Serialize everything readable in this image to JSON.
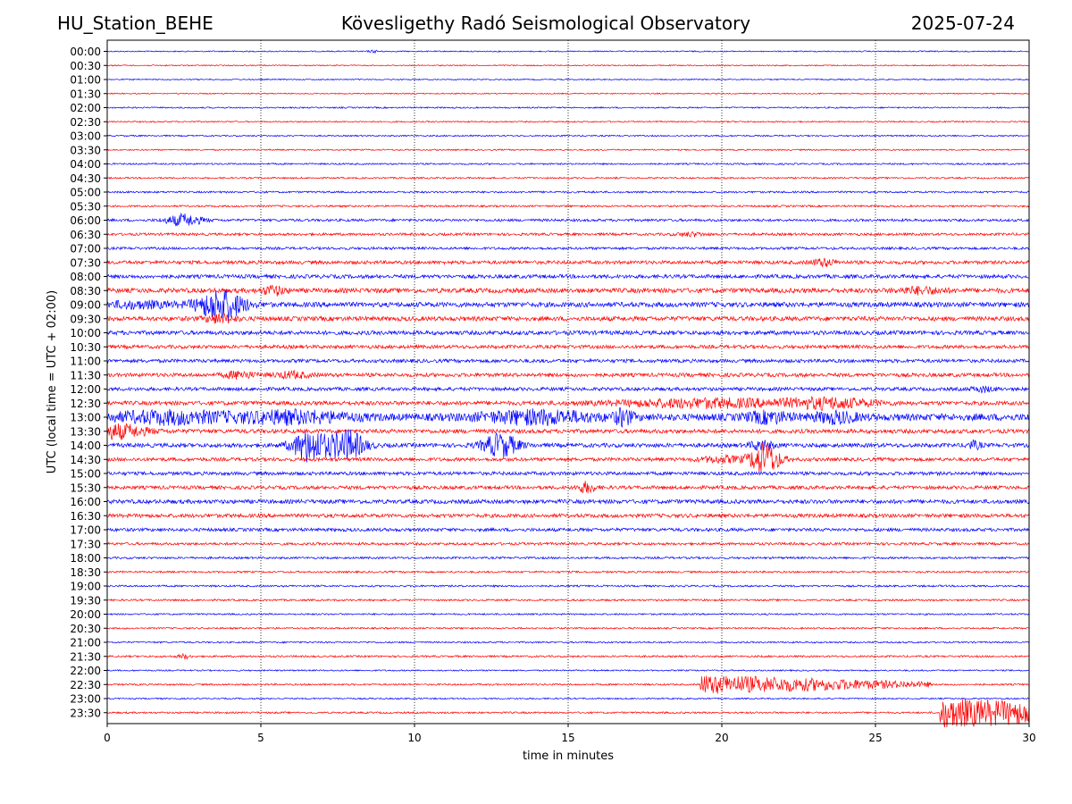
{
  "header": {
    "station": "HU_Station_BEHE",
    "observatory": "Kövesligethy Radó Seismological Observatory",
    "date": "2025-07-24"
  },
  "chart_data": {
    "type": "line",
    "title": "Kövesligethy Radó Seismological Observatory",
    "xlabel": "time in minutes",
    "ylabel": "UTC (local time = UTC + 02:00)",
    "xlim": [
      0,
      30
    ],
    "x_ticks": [
      0,
      5,
      10,
      15,
      20,
      25,
      30
    ],
    "vertical_grid": true,
    "trace_colors": [
      "#0000ff",
      "#ff0000"
    ],
    "rows": [
      {
        "label": "00:00",
        "noise": 0.1,
        "events": [
          {
            "t": 8.7,
            "amp": 0.18,
            "dur": 0.4
          }
        ]
      },
      {
        "label": "00:30",
        "noise": 0.1,
        "events": []
      },
      {
        "label": "01:00",
        "noise": 0.1,
        "events": []
      },
      {
        "label": "01:30",
        "noise": 0.1,
        "events": []
      },
      {
        "label": "02:00",
        "noise": 0.12,
        "events": []
      },
      {
        "label": "02:30",
        "noise": 0.12,
        "events": []
      },
      {
        "label": "03:00",
        "noise": 0.12,
        "events": []
      },
      {
        "label": "03:30",
        "noise": 0.12,
        "events": []
      },
      {
        "label": "04:00",
        "noise": 0.14,
        "events": []
      },
      {
        "label": "04:30",
        "noise": 0.14,
        "events": []
      },
      {
        "label": "05:00",
        "noise": 0.16,
        "events": []
      },
      {
        "label": "05:30",
        "noise": 0.16,
        "events": []
      },
      {
        "label": "06:00",
        "noise": 0.22,
        "events": [
          {
            "t": 2.5,
            "amp": 1.0,
            "dur": 1.2
          }
        ]
      },
      {
        "label": "06:30",
        "noise": 0.22,
        "events": [
          {
            "t": 19.0,
            "amp": 0.3,
            "dur": 1.0
          }
        ]
      },
      {
        "label": "07:00",
        "noise": 0.22,
        "events": []
      },
      {
        "label": "07:30",
        "noise": 0.3,
        "events": [
          {
            "t": 23.3,
            "amp": 0.6,
            "dur": 0.8
          }
        ]
      },
      {
        "label": "08:00",
        "noise": 0.32,
        "events": []
      },
      {
        "label": "08:30",
        "noise": 0.4,
        "events": [
          {
            "t": 5.4,
            "amp": 0.7,
            "dur": 0.8
          },
          {
            "t": 26.5,
            "amp": 0.5,
            "dur": 1.5
          }
        ]
      },
      {
        "label": "09:00",
        "noise": 0.42,
        "events": [
          {
            "t": 3.7,
            "amp": 2.6,
            "dur": 1.6
          },
          {
            "t": 1.0,
            "amp": 0.5,
            "dur": 2.5
          }
        ]
      },
      {
        "label": "09:30",
        "noise": 0.38,
        "events": [
          {
            "t": 3.7,
            "amp": 0.7,
            "dur": 1.0
          }
        ]
      },
      {
        "label": "10:00",
        "noise": 0.35,
        "events": []
      },
      {
        "label": "10:30",
        "noise": 0.3,
        "events": []
      },
      {
        "label": "11:00",
        "noise": 0.3,
        "events": []
      },
      {
        "label": "11:30",
        "noise": 0.32,
        "events": [
          {
            "t": 4.3,
            "amp": 0.6,
            "dur": 1.0
          },
          {
            "t": 6.0,
            "amp": 0.5,
            "dur": 1.2
          }
        ]
      },
      {
        "label": "12:00",
        "noise": 0.3,
        "events": [
          {
            "t": 28.5,
            "amp": 0.4,
            "dur": 0.8
          }
        ]
      },
      {
        "label": "12:30",
        "noise": 0.35,
        "events": [
          {
            "t": 19.5,
            "amp": 0.7,
            "dur": 6.0
          },
          {
            "t": 23.5,
            "amp": 0.8,
            "dur": 3.0
          }
        ]
      },
      {
        "label": "13:00",
        "noise": 0.6,
        "events": [
          {
            "t": 2.0,
            "amp": 0.9,
            "dur": 4.0
          },
          {
            "t": 6.0,
            "amp": 0.9,
            "dur": 4.0
          },
          {
            "t": 14.0,
            "amp": 1.0,
            "dur": 4.0
          },
          {
            "t": 16.8,
            "amp": 1.2,
            "dur": 0.6
          },
          {
            "t": 21.5,
            "amp": 0.8,
            "dur": 1.5
          },
          {
            "t": 23.7,
            "amp": 0.8,
            "dur": 1.5
          }
        ]
      },
      {
        "label": "13:30",
        "noise": 0.35,
        "events": [
          {
            "t": 0.3,
            "amp": 1.2,
            "dur": 2.0
          }
        ]
      },
      {
        "label": "14:00",
        "noise": 0.35,
        "events": [
          {
            "t": 6.6,
            "amp": 2.8,
            "dur": 1.2
          },
          {
            "t": 7.8,
            "amp": 2.6,
            "dur": 1.2
          },
          {
            "t": 12.8,
            "amp": 2.0,
            "dur": 1.2
          },
          {
            "t": 21.3,
            "amp": 0.8,
            "dur": 0.8
          },
          {
            "t": 28.2,
            "amp": 0.6,
            "dur": 0.5
          }
        ]
      },
      {
        "label": "14:30",
        "noise": 0.3,
        "events": [
          {
            "t": 21.4,
            "amp": 2.8,
            "dur": 1.0
          },
          {
            "t": 20.0,
            "amp": 0.5,
            "dur": 1.5
          }
        ]
      },
      {
        "label": "15:00",
        "noise": 0.3,
        "events": []
      },
      {
        "label": "15:30",
        "noise": 0.3,
        "events": [
          {
            "t": 15.6,
            "amp": 0.9,
            "dur": 0.6
          }
        ]
      },
      {
        "label": "16:00",
        "noise": 0.35,
        "events": []
      },
      {
        "label": "16:30",
        "noise": 0.32,
        "events": []
      },
      {
        "label": "17:00",
        "noise": 0.28,
        "events": []
      },
      {
        "label": "17:30",
        "noise": 0.22,
        "events": []
      },
      {
        "label": "18:00",
        "noise": 0.18,
        "events": []
      },
      {
        "label": "18:30",
        "noise": 0.16,
        "events": []
      },
      {
        "label": "19:00",
        "noise": 0.16,
        "events": []
      },
      {
        "label": "19:30",
        "noise": 0.16,
        "events": []
      },
      {
        "label": "20:00",
        "noise": 0.14,
        "events": []
      },
      {
        "label": "20:30",
        "noise": 0.14,
        "events": []
      },
      {
        "label": "21:00",
        "noise": 0.14,
        "events": []
      },
      {
        "label": "21:30",
        "noise": 0.16,
        "events": [
          {
            "t": 2.5,
            "amp": 0.4,
            "dur": 0.4
          }
        ]
      },
      {
        "label": "22:00",
        "noise": 0.12,
        "events": []
      },
      {
        "label": "22:30",
        "noise": 0.15,
        "events": [
          {
            "t": 19.3,
            "amp": 1.6,
            "dur": 7.5,
            "shape": "coda"
          }
        ]
      },
      {
        "label": "23:00",
        "noise": 0.12,
        "events": []
      },
      {
        "label": "23:30",
        "noise": 0.15,
        "events": [
          {
            "t": 27.1,
            "amp": 2.6,
            "dur": 2.9,
            "shape": "sustained"
          }
        ]
      }
    ]
  }
}
